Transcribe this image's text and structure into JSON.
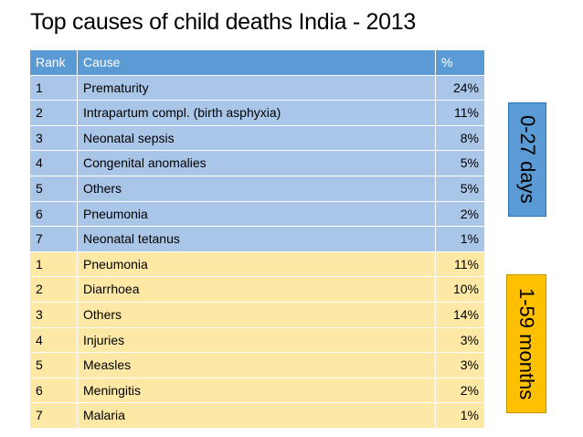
{
  "title": "Top causes of child deaths India - 2013",
  "table": {
    "header": [
      "Rank",
      "Cause",
      "%"
    ],
    "groups": [
      {
        "label": "0-27 days",
        "rows": [
          [
            "1",
            "Prematurity",
            "24%"
          ],
          [
            "2",
            "Intrapartum compl. (birth asphyxia)",
            "11%"
          ],
          [
            "3",
            "Neonatal sepsis",
            "8%"
          ],
          [
            "4",
            "Congenital anomalies",
            "5%"
          ],
          [
            "5",
            "Others",
            "5%"
          ],
          [
            "6",
            "Pneumonia",
            "2%"
          ],
          [
            "7",
            "Neonatal tetanus",
            "1%"
          ]
        ]
      },
      {
        "label": "1-59 months",
        "rows": [
          [
            "1",
            "Pneumonia",
            "11%"
          ],
          [
            "2",
            "Diarrhoea",
            "10%"
          ],
          [
            "3",
            "Others",
            "14%"
          ],
          [
            "4",
            "Injuries",
            "3%"
          ],
          [
            "5",
            "Measles",
            "3%"
          ],
          [
            "6",
            "Meningitis",
            "2%"
          ],
          [
            "7",
            "Malaria",
            "1%"
          ]
        ]
      }
    ]
  }
}
